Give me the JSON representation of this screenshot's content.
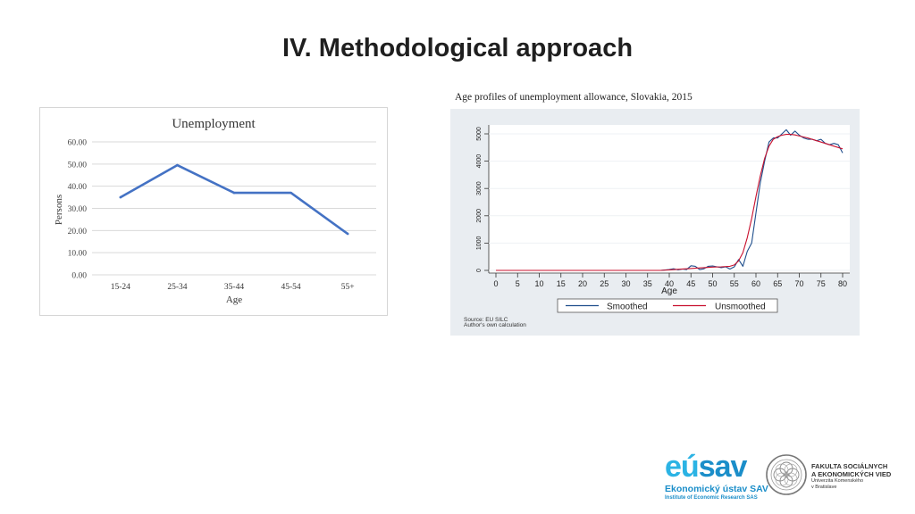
{
  "slide": {
    "title": "IV. Methodological approach"
  },
  "chart_data": [
    {
      "type": "line",
      "title": "Unemployment",
      "xlabel": "Age",
      "ylabel": "Persons",
      "categories": [
        "15-24",
        "25-34",
        "35-44",
        "45-54",
        "55+"
      ],
      "series": [
        {
          "name": "Unemployment",
          "values": [
            35,
            49.5,
            37,
            37,
            18.5
          ],
          "color": "#4472c4"
        }
      ],
      "ylim": [
        0,
        60
      ],
      "yticks": [
        "0.00",
        "10.00",
        "20.00",
        "30.00",
        "40.00",
        "50.00",
        "60.00"
      ],
      "grid": true
    },
    {
      "type": "line",
      "title": "Age profiles of unemployment allowance, Slovakia, 2015",
      "xlabel": "Age",
      "ylabel": "",
      "xlim": [
        0,
        80
      ],
      "ylim": [
        0,
        5000
      ],
      "xticks": [
        "0",
        "5",
        "10",
        "15",
        "20",
        "25",
        "30",
        "35",
        "40",
        "45",
        "50",
        "55",
        "60",
        "65",
        "70",
        "75",
        "80"
      ],
      "yticks": [
        "0",
        "1000",
        "2000",
        "3000",
        "4000",
        "5000"
      ],
      "legend": [
        "Smoothed",
        "Unsmoothed"
      ],
      "legend_position": "bottom",
      "source_lines": [
        "Source: EU SILC",
        "Author's own calculation"
      ],
      "series": [
        {
          "name": "Smoothed",
          "color": "#1f4e8c",
          "x": [
            0,
            10,
            20,
            30,
            38,
            40,
            41,
            42,
            43,
            44,
            45,
            46,
            47,
            48,
            49,
            50,
            51,
            52,
            53,
            54,
            55,
            56,
            57,
            58,
            59,
            60,
            61,
            62,
            63,
            64,
            65,
            66,
            67,
            68,
            69,
            70,
            71,
            72,
            73,
            74,
            75,
            76,
            77,
            78,
            79,
            80
          ],
          "y": [
            0,
            0,
            0,
            0,
            0,
            30,
            60,
            20,
            50,
            30,
            170,
            150,
            30,
            60,
            150,
            160,
            130,
            100,
            130,
            50,
            130,
            400,
            150,
            700,
            1000,
            2100,
            3200,
            4000,
            4700,
            4850,
            4850,
            5000,
            5150,
            4950,
            5100,
            4950,
            4850,
            4800,
            4800,
            4750,
            4800,
            4650,
            4600,
            4650,
            4600,
            4300
          ]
        },
        {
          "name": "Unsmoothed",
          "color": "#c8102e",
          "x": [
            0,
            10,
            20,
            30,
            38,
            40,
            42,
            44,
            46,
            48,
            50,
            52,
            54,
            55,
            56,
            57,
            58,
            59,
            60,
            61,
            62,
            63,
            64,
            65,
            66,
            67,
            68,
            69,
            70,
            72,
            74,
            76,
            78,
            80
          ],
          "y": [
            0,
            0,
            0,
            0,
            0,
            20,
            40,
            60,
            80,
            100,
            120,
            130,
            150,
            200,
            350,
            650,
            1200,
            1900,
            2700,
            3450,
            4100,
            4550,
            4800,
            4900,
            4950,
            4980,
            4980,
            4960,
            4920,
            4850,
            4750,
            4650,
            4550,
            4450
          ]
        }
      ]
    }
  ],
  "logos": {
    "eusav_prefix": "eú",
    "eusav_suffix": "sav",
    "eusav_line1": "Ekonomický ústav SAV",
    "eusav_line2": "Institute of Economic Research SAS",
    "fsev_line1": "FAKULTA SOCIÁLNYCH",
    "fsev_line2": "A EKONOMICKÝCH VIED",
    "fsev_line3": "Univerzita Komenského",
    "fsev_line4": "v Bratislave"
  }
}
